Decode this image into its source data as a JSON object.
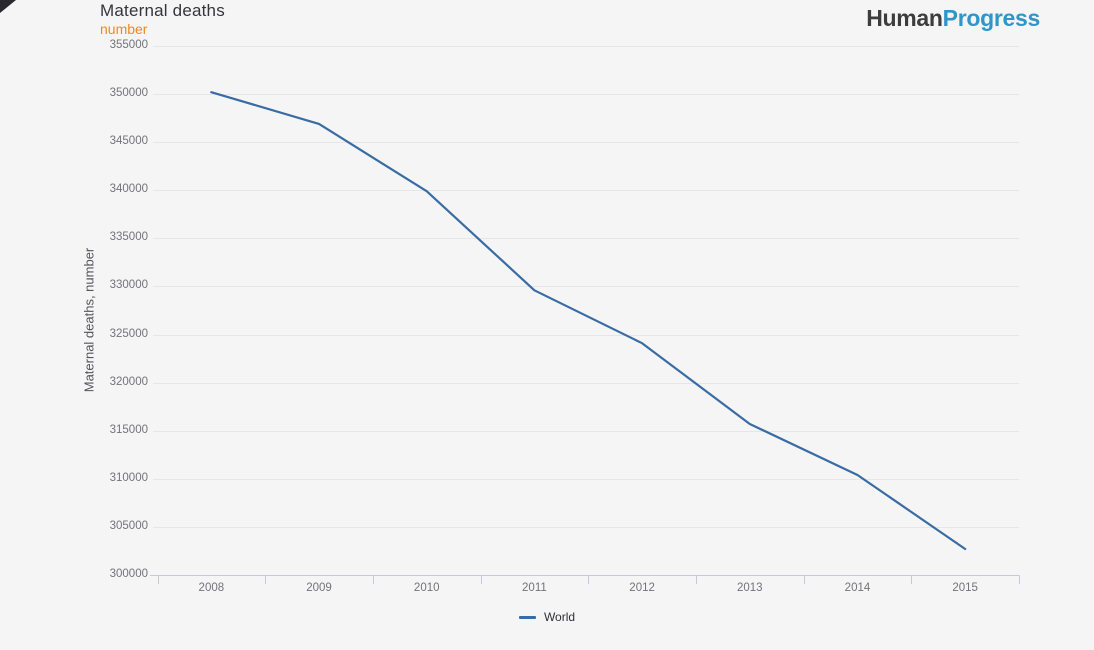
{
  "page": {
    "background": "#f5f5f6"
  },
  "header": {
    "title": "Maternal deaths",
    "subtitle": "number",
    "logo": {
      "first": "Human",
      "second": "Progress"
    }
  },
  "chart_data": {
    "type": "line",
    "title": "Maternal deaths",
    "subtitle": "number",
    "xlabel": "",
    "ylabel": "Maternal deaths, number",
    "categories": [
      "2008",
      "2009",
      "2010",
      "2011",
      "2012",
      "2013",
      "2014",
      "2015"
    ],
    "series": [
      {
        "name": "World",
        "color": "#3a6ca3",
        "values": [
          350200,
          346900,
          339900,
          329600,
          324100,
          315700,
          310400,
          302700
        ]
      }
    ],
    "ylim": [
      300000,
      355000
    ],
    "ytick_step": 5000,
    "yticks": [
      355000,
      350000,
      345000,
      340000,
      335000,
      330000,
      325000,
      320000,
      315000,
      310000,
      305000,
      300000
    ],
    "grid": true,
    "legend_position": "bottom"
  },
  "colors": {
    "title": "#36363a",
    "subtitle_accent": "#f08829",
    "logo_dark": "#3d3d3d",
    "logo_blue": "#2f96c9",
    "axis": "#c3cbdb",
    "grid": "#e6e6e8",
    "tick_label": "#73737a",
    "series_line": "#3a6ca3",
    "corner_mark": "#2a2a2e"
  }
}
